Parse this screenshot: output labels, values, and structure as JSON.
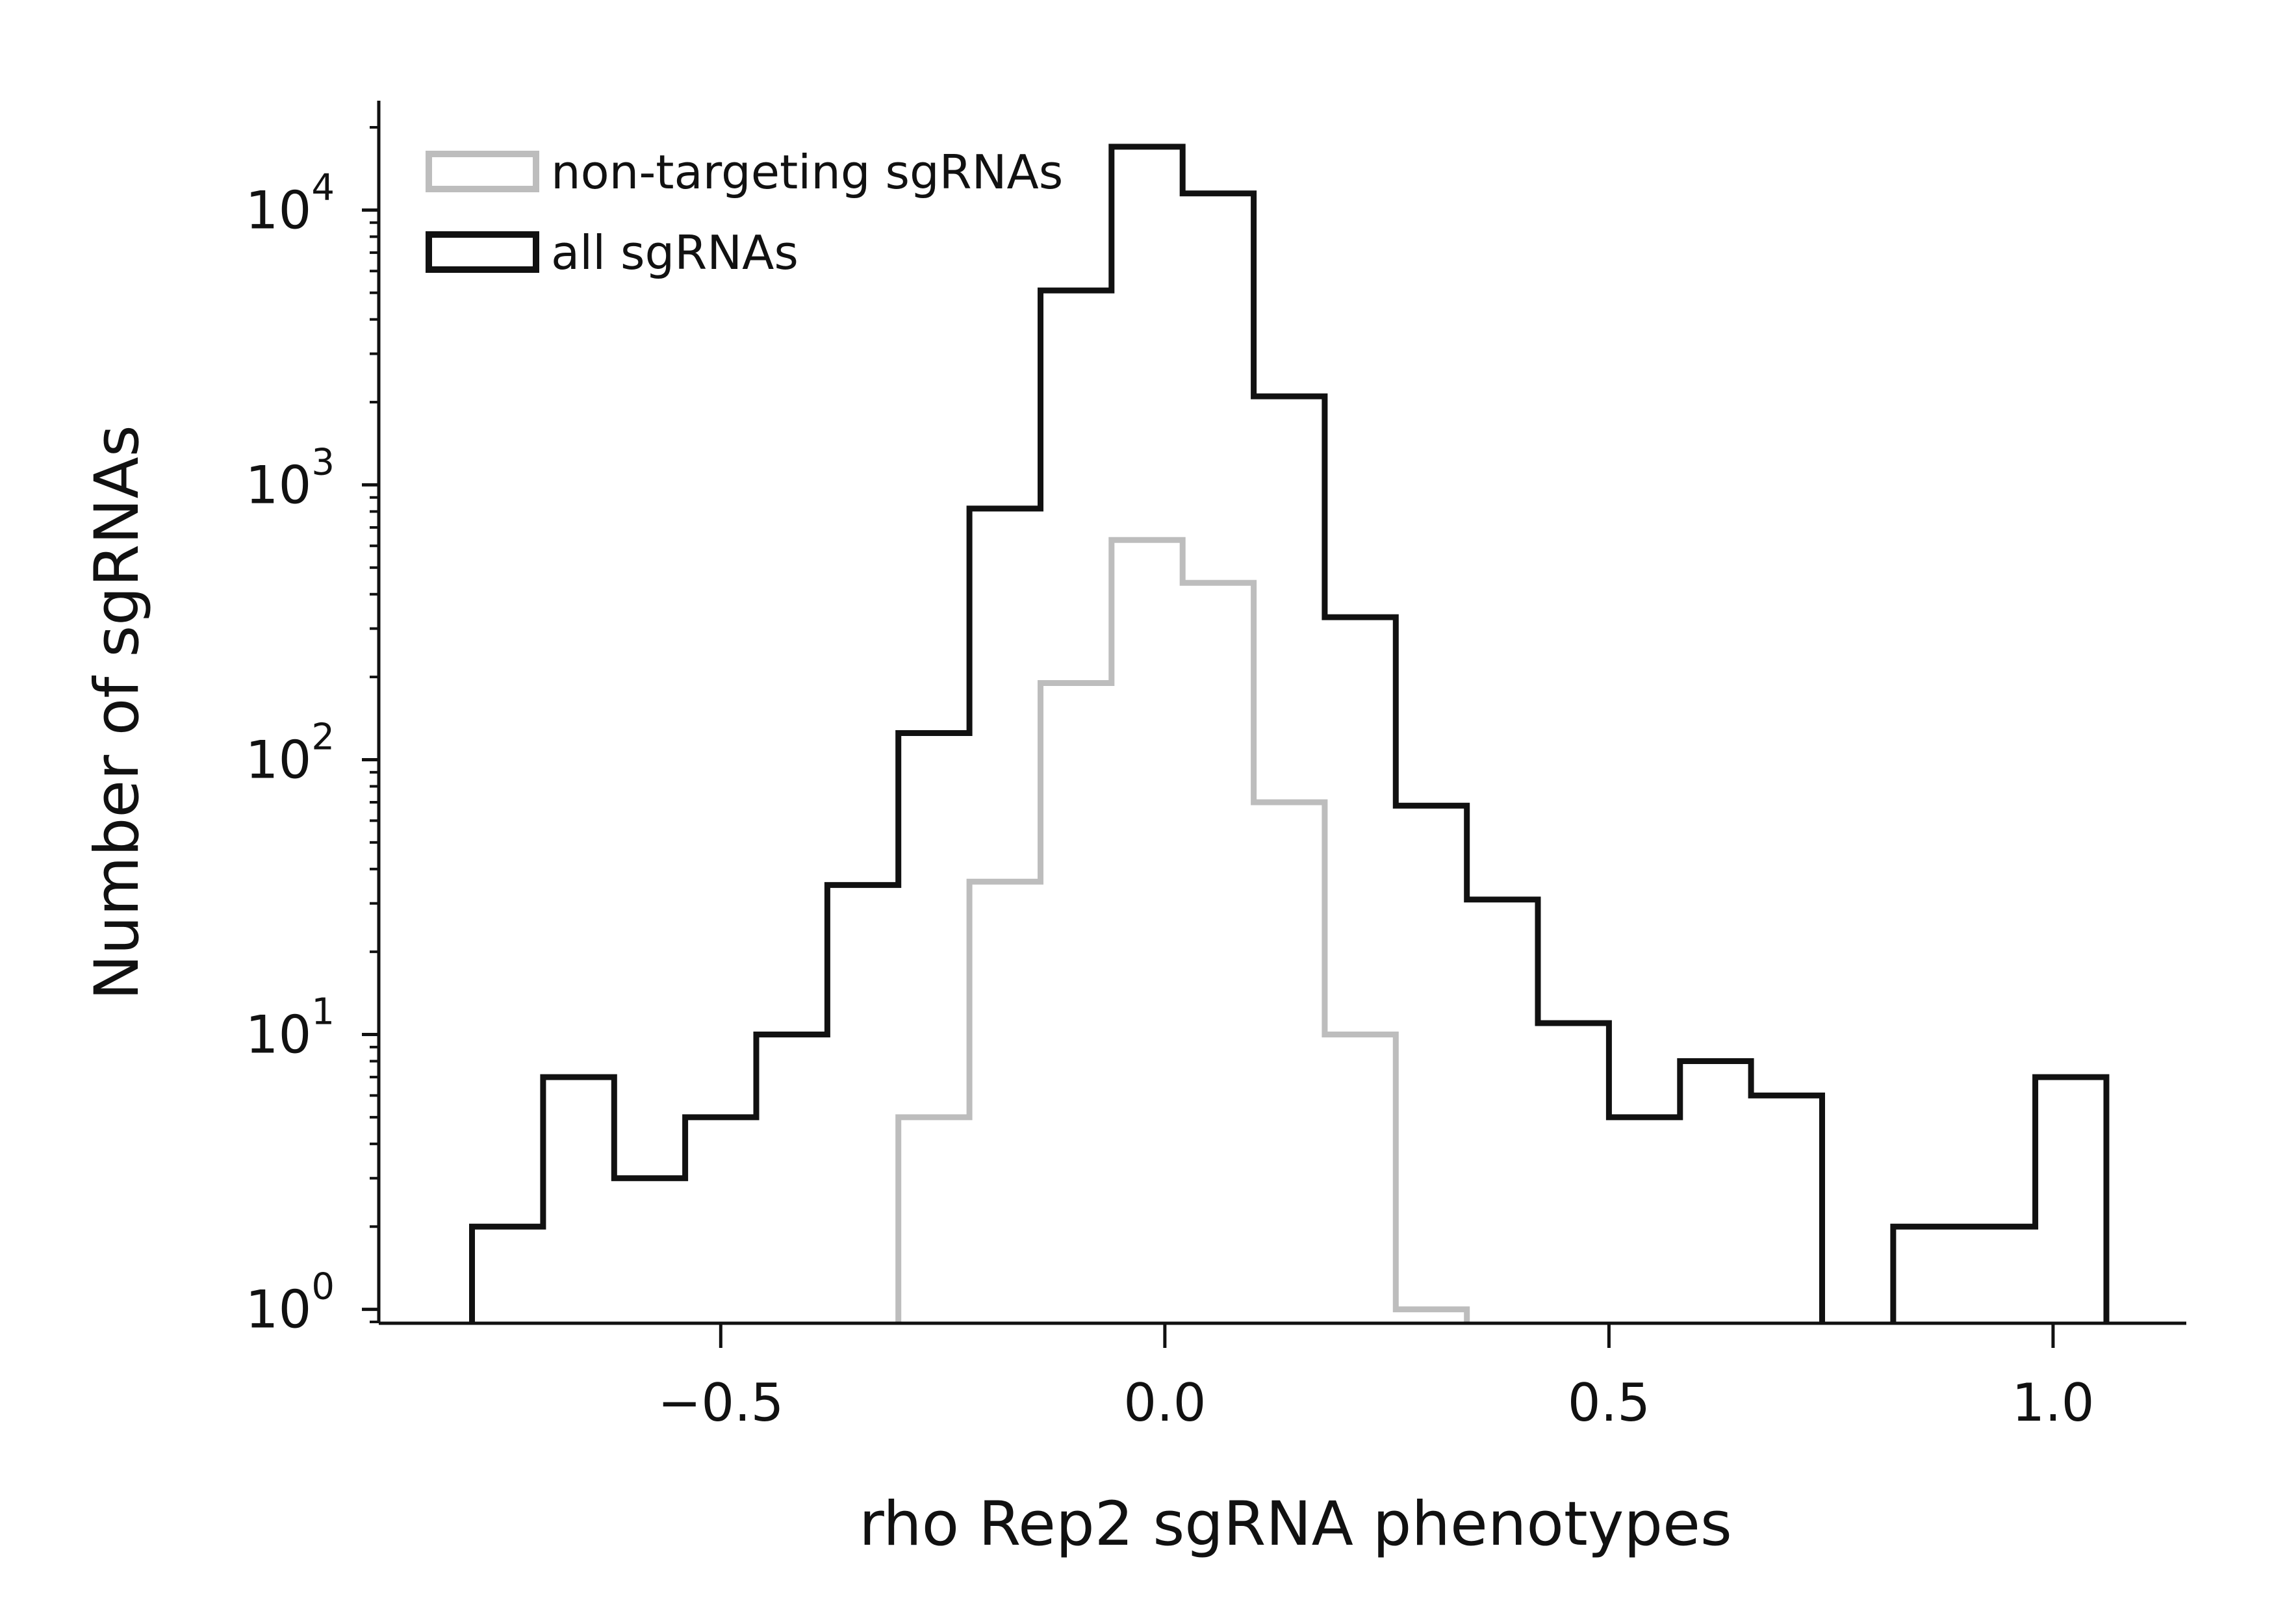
{
  "chart_data": {
    "type": "histogram",
    "xlabel": "rho Rep2 sgRNA phenotypes",
    "ylabel": "Number of sgRNAs",
    "xlim": [
      -0.885,
      1.15
    ],
    "ylim": [
      0.89,
      25000
    ],
    "y_scale": "log",
    "x_ticks": [
      {
        "value": -0.5,
        "label": "−0.5"
      },
      {
        "value": 0.0,
        "label": "0.0"
      },
      {
        "value": 0.5,
        "label": "0.5"
      },
      {
        "value": 1.0,
        "label": "1.0"
      }
    ],
    "y_ticks": [
      {
        "value": 1,
        "base": "10",
        "exp": "0"
      },
      {
        "value": 10,
        "base": "10",
        "exp": "1"
      },
      {
        "value": 100,
        "base": "10",
        "exp": "2"
      },
      {
        "value": 1000,
        "base": "10",
        "exp": "3"
      },
      {
        "value": 10000,
        "base": "10",
        "exp": "4"
      }
    ],
    "grid": false,
    "legend_position": "top-left",
    "series": [
      {
        "name": "non-targeting sgRNAs",
        "color": "#bdbdbd",
        "bin_edges": [
          -0.3,
          -0.22,
          -0.14,
          -0.06,
          0.02,
          0.1,
          0.18,
          0.26,
          0.34
        ],
        "counts": [
          5,
          36,
          190,
          630,
          440,
          70,
          10,
          1
        ]
      },
      {
        "name": "all sgRNAs",
        "color": "#111111",
        "bin_edges": [
          -0.78,
          -0.7,
          -0.62,
          -0.54,
          -0.46,
          -0.38,
          -0.3,
          -0.22,
          -0.14,
          -0.06,
          0.02,
          0.1,
          0.18,
          0.26,
          0.34,
          0.42,
          0.5,
          0.58,
          0.66,
          0.74,
          0.82,
          0.9,
          0.98,
          1.06
        ],
        "counts": [
          2,
          7,
          3,
          5,
          10,
          35,
          125,
          820,
          5100,
          17000,
          11500,
          2100,
          330,
          68,
          31,
          11,
          5,
          8,
          6,
          0,
          2,
          2,
          7
        ]
      }
    ]
  }
}
